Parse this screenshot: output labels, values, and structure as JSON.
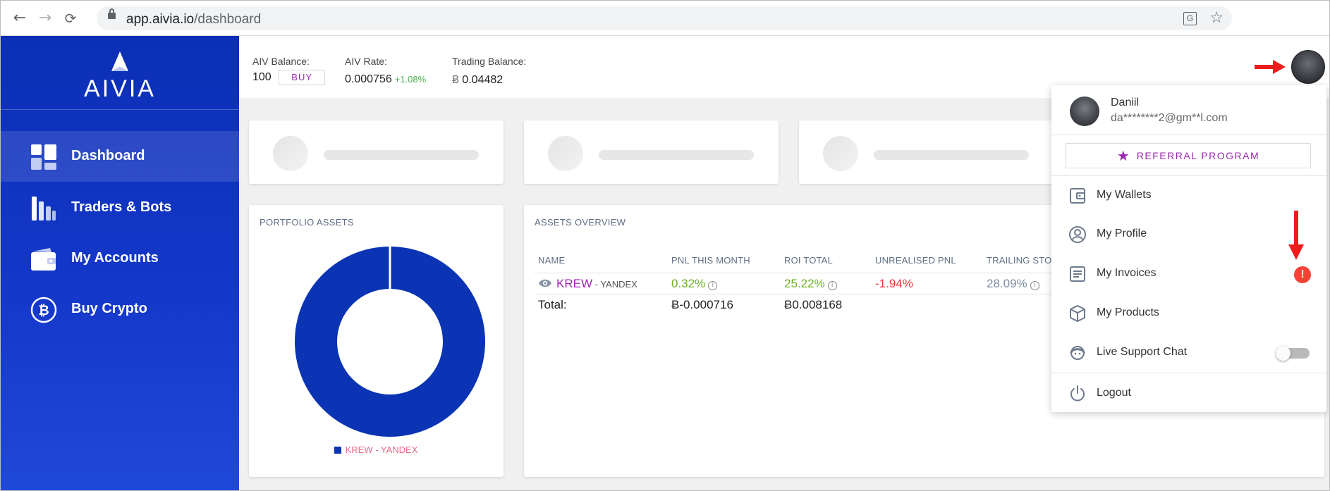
{
  "browser": {
    "url_host": "app.aivia.io",
    "url_path": "/dashboard"
  },
  "sidebar": {
    "logo_text": "AIVIA",
    "items": [
      {
        "label": "Dashboard",
        "icon": "dashboard-icon",
        "active": true
      },
      {
        "label": "Traders & Bots",
        "icon": "bar-chart-icon",
        "active": false
      },
      {
        "label": "My Accounts",
        "icon": "wallet-icon",
        "active": false
      },
      {
        "label": "Buy Crypto",
        "icon": "bitcoin-icon",
        "active": false
      }
    ]
  },
  "header": {
    "aiv_balance_label": "AIV Balance:",
    "aiv_balance_value": "100",
    "buy_label": "BUY",
    "aiv_rate_label": "AIV Rate:",
    "aiv_rate_value": "0.000756",
    "aiv_rate_change": "+1.08%",
    "trading_balance_label": "Trading Balance:",
    "btc_symbol": "Ƀ",
    "trading_balance_value": "0.04482"
  },
  "portfolio": {
    "title": "PORTFOLIO ASSETS",
    "legend_label": "KREW - YANDEX",
    "slice_color": "#0a34b3"
  },
  "assets_overview": {
    "title": "ASSETS OVERVIEW",
    "columns": [
      "NAME",
      "PNL THIS MONTH",
      "ROI TOTAL",
      "UNREALISED PNL",
      "TRAILING STO"
    ],
    "row": {
      "name": "KREW",
      "sep": " - ",
      "exchange": "YANDEX",
      "pnl_month": "0.32%",
      "roi_total": "25.22%",
      "unrealised": "-1.94%",
      "trailing": "28.09%"
    },
    "total": {
      "label": "Total:",
      "pnl_month": "Ƀ-0.000716",
      "roi_total": "Ƀ0.008168"
    }
  },
  "user_menu": {
    "name": "Daniil",
    "email": "da********2@gm**l.com",
    "referral_label": "REFERRAL PROGRAM",
    "items": [
      {
        "label": "My Wallets",
        "icon": "wallet-outline-icon"
      },
      {
        "label": "My Profile",
        "icon": "user-circle-icon"
      },
      {
        "label": "My Invoices",
        "icon": "invoice-icon"
      },
      {
        "label": "My Products",
        "icon": "box-icon"
      },
      {
        "label": "Live Support Chat",
        "icon": "support-chat-icon"
      },
      {
        "label": "Logout",
        "icon": "power-icon"
      }
    ],
    "invoice_alert": "!"
  },
  "colors": {
    "sidebar": "#1437c9",
    "accent_purple": "#9c27b0",
    "positive": "#6ab023",
    "negative": "#e53935",
    "neutral_value": "#7a8ca3"
  }
}
